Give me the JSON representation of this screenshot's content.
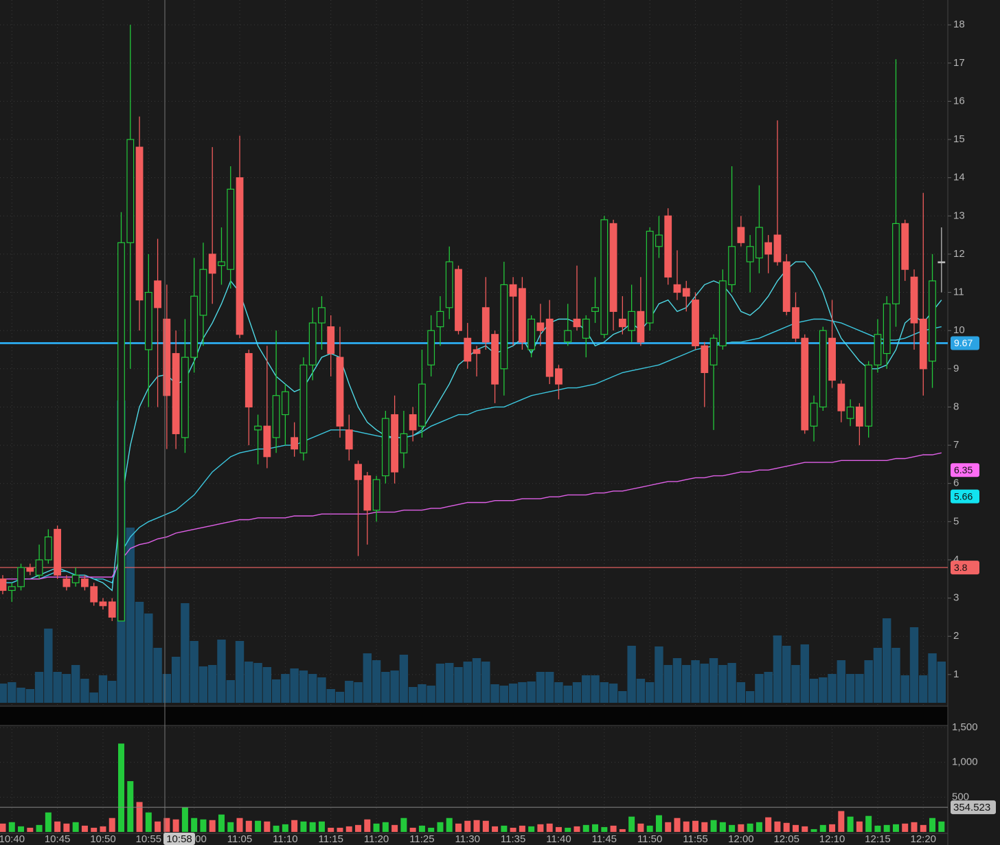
{
  "chart_data": {
    "type": "candlestick",
    "categories": [
      null,
      "10:40",
      null,
      null,
      null,
      null,
      "10:45",
      null,
      null,
      null,
      null,
      "10:50",
      null,
      null,
      null,
      null,
      "10:55",
      null,
      null,
      null,
      null,
      "11:00",
      null,
      null,
      null,
      null,
      "11:05",
      null,
      null,
      null,
      null,
      "11:10",
      null,
      null,
      null,
      null,
      "11:15",
      null,
      null,
      null,
      null,
      "11:20",
      null,
      null,
      null,
      null,
      "11:25",
      null,
      null,
      null,
      null,
      "11:30",
      null,
      null,
      null,
      null,
      "11:35",
      null,
      null,
      null,
      null,
      "11:40",
      null,
      null,
      null,
      null,
      "11:45",
      null,
      null,
      null,
      null,
      "11:50",
      null,
      null,
      null,
      null,
      "11:55",
      null,
      null,
      null,
      null,
      "12:00",
      null,
      null,
      null,
      null,
      "12:05",
      null,
      null,
      null,
      null,
      "12:10",
      null,
      null,
      null,
      null,
      "12:15",
      null,
      null,
      null,
      null,
      "12:20",
      null,
      null
    ],
    "open": [
      3.5,
      3.2,
      3.3,
      3.8,
      3.6,
      4.0,
      4.8,
      3.5,
      3.4,
      3.5,
      3.3,
      2.9,
      2.9,
      2.4,
      12.3,
      14.8,
      9.5,
      11.3,
      10.3,
      9.4,
      7.2,
      9.3,
      10.4,
      12.0,
      11.7,
      11.6,
      14.0,
      9.4,
      7.4,
      7.5,
      7.2,
      7.8,
      7.2,
      6.8,
      9.1,
      10.2,
      10.1,
      9.3,
      7.4,
      6.5,
      6.2,
      5.3,
      6.2,
      7.8,
      6.8,
      7.8,
      7.5,
      9.1,
      10.1,
      10.6,
      11.6,
      9.8,
      9.5,
      10.6,
      9.9,
      9.0,
      11.2,
      11.1,
      9.5,
      10.2,
      10.3,
      9.0,
      9.7,
      10.3,
      9.8,
      10.5,
      9.9,
      12.8,
      10.3,
      10.0,
      10.5,
      10.2,
      12.2,
      13.0,
      11.2,
      11.1,
      10.8,
      9.6,
      9.1,
      9.6,
      11.2,
      12.7,
      11.8,
      11.9,
      12.3,
      12.5,
      11.8,
      10.6,
      9.8,
      7.5,
      8.0,
      9.8,
      8.6,
      7.7,
      8.0,
      7.5,
      9.1,
      9.4,
      10.7,
      12.8,
      11.4,
      10.3,
      9.2,
      11.8
    ],
    "high": [
      3.6,
      3.4,
      3.9,
      3.9,
      4.4,
      4.8,
      4.9,
      3.6,
      3.8,
      3.6,
      3.4,
      3.0,
      3.0,
      13.1,
      18.0,
      15.6,
      12.0,
      12.4,
      11.2,
      10.0,
      10.3,
      11.9,
      12.3,
      14.8,
      12.7,
      14.3,
      15.1,
      9.5,
      7.8,
      9.6,
      10.0,
      8.6,
      7.6,
      9.3,
      10.6,
      10.9,
      10.4,
      10.1,
      7.8,
      6.6,
      6.3,
      6.2,
      7.9,
      8.3,
      7.9,
      8.0,
      9.5,
      10.4,
      10.9,
      12.2,
      11.7,
      10.2,
      9.6,
      11.4,
      10.0,
      11.8,
      11.4,
      11.4,
      10.4,
      10.7,
      10.8,
      9.1,
      10.7,
      11.7,
      10.4,
      11.4,
      13.0,
      12.9,
      10.9,
      11.2,
      11.4,
      12.7,
      13.0,
      13.2,
      12.1,
      11.3,
      11.0,
      9.7,
      9.9,
      11.6,
      14.3,
      13.0,
      12.5,
      13.8,
      12.5,
      15.5,
      12.0,
      11.0,
      9.9,
      8.3,
      10.1,
      10.8,
      8.7,
      8.2,
      8.1,
      9.2,
      10.3,
      10.9,
      17.1,
      12.9,
      11.6,
      13.6,
      12.0,
      12.7
    ],
    "low": [
      3.1,
      2.9,
      3.2,
      3.6,
      3.5,
      3.9,
      3.5,
      3.2,
      3.3,
      3.2,
      2.8,
      2.7,
      2.4,
      2.4,
      9.0,
      10.0,
      8.0,
      8.0,
      6.9,
      6.9,
      6.8,
      8.9,
      9.6,
      10.7,
      11.2,
      11.1,
      9.8,
      7.0,
      6.5,
      6.4,
      6.8,
      7.0,
      6.7,
      6.6,
      8.7,
      9.5,
      8.8,
      7.2,
      6.6,
      4.1,
      4.4,
      5.0,
      6.0,
      6.0,
      6.4,
      7.1,
      7.2,
      8.8,
      9.6,
      10.3,
      9.9,
      9.0,
      8.8,
      9.5,
      8.1,
      8.3,
      9.6,
      9.5,
      9.3,
      9.6,
      8.6,
      8.2,
      9.6,
      10.0,
      9.3,
      10.2,
      9.8,
      10.0,
      9.9,
      9.7,
      9.6,
      10.0,
      11.9,
      11.2,
      10.8,
      10.5,
      9.5,
      8.0,
      7.4,
      9.5,
      11.0,
      12.2,
      11.0,
      11.5,
      11.5,
      11.7,
      10.4,
      9.7,
      7.3,
      7.1,
      7.9,
      8.5,
      7.6,
      7.5,
      7.0,
      7.2,
      8.9,
      9.0,
      10.1,
      11.3,
      9.5,
      8.3,
      8.5,
      11.0
    ],
    "close": [
      3.2,
      3.3,
      3.8,
      3.7,
      4.0,
      4.6,
      3.6,
      3.3,
      3.6,
      3.3,
      2.9,
      2.8,
      2.5,
      12.3,
      15.0,
      10.8,
      11.0,
      10.6,
      8.3,
      7.3,
      9.3,
      10.9,
      11.6,
      11.5,
      11.8,
      13.7,
      9.9,
      8.0,
      7.5,
      6.7,
      8.3,
      8.4,
      6.9,
      9.1,
      10.2,
      10.6,
      9.4,
      7.5,
      6.9,
      6.1,
      5.3,
      6.1,
      7.7,
      6.3,
      7.3,
      7.4,
      8.6,
      10.0,
      10.5,
      11.8,
      10.0,
      9.2,
      9.4,
      9.7,
      8.6,
      11.2,
      10.9,
      9.7,
      10.3,
      10.0,
      8.8,
      8.6,
      10.0,
      10.1,
      10.3,
      10.6,
      12.9,
      10.5,
      10.1,
      10.5,
      9.7,
      12.6,
      12.5,
      11.4,
      11.0,
      10.9,
      9.6,
      8.9,
      9.8,
      11.3,
      12.2,
      12.3,
      12.2,
      12.7,
      12.0,
      11.8,
      10.5,
      9.8,
      7.4,
      8.1,
      10.0,
      8.7,
      7.9,
      8.0,
      7.5,
      9.1,
      9.9,
      10.7,
      12.8,
      11.6,
      10.2,
      9.0,
      11.3,
      11.8
    ],
    "volume": [
      28,
      30,
      22,
      20,
      45,
      108,
      45,
      42,
      55,
      35,
      15,
      40,
      32,
      440,
      255,
      147,
      130,
      80,
      42,
      67,
      145,
      90,
      53,
      55,
      92,
      33,
      90,
      60,
      58,
      52,
      34,
      42,
      50,
      47,
      42,
      37,
      20,
      16,
      32,
      30,
      72,
      62,
      45,
      47,
      70,
      23,
      27,
      25,
      57,
      58,
      52,
      60,
      65,
      60,
      27,
      25,
      28,
      30,
      31,
      45,
      45,
      30,
      25,
      30,
      40,
      40,
      30,
      28,
      17,
      83,
      35,
      30,
      82,
      55,
      65,
      55,
      62,
      57,
      65,
      55,
      58,
      30,
      17,
      42,
      45,
      98,
      83,
      55,
      85,
      35,
      37,
      42,
      62,
      42,
      42,
      62,
      80,
      123,
      80,
      40,
      110,
      40,
      72,
      60
    ],
    "lines": [
      {
        "color": "#4fd9e6",
        "values": [
          3.4,
          3.4,
          3.5,
          3.5,
          3.6,
          3.7,
          3.8,
          3.7,
          3.6,
          3.6,
          3.5,
          3.4,
          3.2,
          5.5,
          7.0,
          8.0,
          8.5,
          8.8,
          8.85,
          8.6,
          8.7,
          9.2,
          9.8,
          10.2,
          10.7,
          11.3,
          11.0,
          10.3,
          9.6,
          9.2,
          8.8,
          8.6,
          8.4,
          8.5,
          8.9,
          9.3,
          9.4,
          9.3,
          8.6,
          8.0,
          7.6,
          7.4,
          7.25,
          7.2,
          7.2,
          7.25,
          7.4,
          7.8,
          8.2,
          8.6,
          9.1,
          9.3,
          9.5,
          9.6,
          9.4,
          9.5,
          9.6,
          9.8,
          9.4,
          9.9,
          10.2,
          10.3,
          10.3,
          10.2,
          10.0,
          9.6,
          9.7,
          9.9,
          10.0,
          10.2,
          10.0,
          10.3,
          10.7,
          10.8,
          10.5,
          10.6,
          10.9,
          11.2,
          11.3,
          11.2,
          10.9,
          10.5,
          10.4,
          10.6,
          10.9,
          11.3,
          11.6,
          11.8,
          11.8,
          11.5,
          11.0,
          10.3,
          9.8,
          9.5,
          9.2,
          9.0,
          9.0,
          9.1,
          9.5,
          10.2,
          10.4,
          10.2,
          10.5,
          10.8
        ]
      },
      {
        "color": "#3cc8e0",
        "values": [
          3.4,
          3.4,
          3.5,
          3.5,
          3.5,
          3.6,
          3.7,
          3.7,
          3.6,
          3.6,
          3.5,
          3.5,
          3.4,
          4.2,
          4.6,
          4.85,
          5.0,
          5.1,
          5.2,
          5.3,
          5.5,
          5.7,
          6.0,
          6.3,
          6.5,
          6.7,
          6.8,
          6.85,
          6.9,
          6.9,
          6.95,
          7.0,
          7.0,
          7.1,
          7.2,
          7.3,
          7.4,
          7.4,
          7.4,
          7.35,
          7.3,
          7.25,
          7.2,
          7.2,
          7.2,
          7.25,
          7.35,
          7.5,
          7.6,
          7.7,
          7.8,
          7.8,
          7.9,
          7.95,
          8.0,
          8.0,
          8.1,
          8.2,
          8.3,
          8.35,
          8.4,
          8.45,
          8.5,
          8.5,
          8.55,
          8.6,
          8.7,
          8.8,
          8.9,
          8.95,
          9.0,
          9.05,
          9.1,
          9.2,
          9.3,
          9.4,
          9.5,
          9.55,
          9.6,
          9.65,
          9.7,
          9.7,
          9.75,
          9.8,
          9.9,
          10.0,
          10.1,
          10.2,
          10.25,
          10.3,
          10.3,
          10.25,
          10.2,
          10.1,
          10.0,
          9.9,
          9.8,
          9.75,
          9.75,
          9.8,
          9.9,
          10.0,
          10.05,
          10.1
        ]
      },
      {
        "color": "#e060e8",
        "values": [
          3.5,
          3.5,
          3.5,
          3.5,
          3.5,
          3.55,
          3.55,
          3.55,
          3.55,
          3.55,
          3.55,
          3.55,
          3.55,
          4.0,
          4.3,
          4.4,
          4.45,
          4.55,
          4.6,
          4.7,
          4.75,
          4.8,
          4.85,
          4.9,
          4.95,
          5.0,
          5.05,
          5.05,
          5.1,
          5.1,
          5.1,
          5.1,
          5.15,
          5.15,
          5.15,
          5.2,
          5.2,
          5.2,
          5.2,
          5.2,
          5.2,
          5.25,
          5.25,
          5.25,
          5.3,
          5.3,
          5.3,
          5.35,
          5.35,
          5.4,
          5.45,
          5.5,
          5.5,
          5.5,
          5.55,
          5.55,
          5.55,
          5.6,
          5.6,
          5.6,
          5.65,
          5.65,
          5.7,
          5.7,
          5.7,
          5.75,
          5.75,
          5.8,
          5.8,
          5.85,
          5.9,
          5.95,
          6.0,
          6.05,
          6.05,
          6.1,
          6.15,
          6.15,
          6.2,
          6.2,
          6.25,
          6.3,
          6.3,
          6.35,
          6.35,
          6.4,
          6.45,
          6.5,
          6.55,
          6.55,
          6.55,
          6.55,
          6.6,
          6.6,
          6.6,
          6.6,
          6.6,
          6.6,
          6.65,
          6.65,
          6.7,
          6.75,
          6.75,
          6.8
        ]
      }
    ],
    "levels": [
      {
        "value": 9.67,
        "color": "#2ba3e3",
        "label_color": "#ffffff",
        "line": true
      },
      {
        "value": 6.35,
        "color": "#ff6cf5",
        "label_color": "#111111",
        "line": false
      },
      {
        "value": 5.66,
        "color": "#12e3f0",
        "label_color": "#111111",
        "line": false
      },
      {
        "value": 3.8,
        "color": "#f26464",
        "label_color": "#111111",
        "line": true
      }
    ],
    "ylim": [
      0.26,
      18.65
    ],
    "yticks": [
      1,
      2,
      3,
      4,
      5,
      6,
      7,
      8,
      9,
      10,
      11,
      12,
      13,
      14,
      15,
      16,
      17,
      18
    ],
    "up_color": "#23c93b",
    "down_color": "#f25c5c",
    "volume_color": "#1a4c6b",
    "grid": true,
    "crosshair_label": "10:58",
    "lower": {
      "values": [
        120,
        140,
        80,
        60,
        100,
        280,
        150,
        120,
        140,
        90,
        60,
        80,
        200,
        1270,
        730,
        430,
        280,
        150,
        200,
        180,
        350,
        200,
        180,
        170,
        250,
        140,
        200,
        160,
        160,
        150,
        90,
        110,
        170,
        150,
        140,
        150,
        60,
        60,
        80,
        100,
        180,
        120,
        140,
        100,
        200,
        60,
        90,
        60,
        140,
        200,
        120,
        160,
        170,
        160,
        80,
        90,
        60,
        90,
        80,
        110,
        120,
        70,
        60,
        80,
        100,
        110,
        70,
        90,
        40,
        220,
        120,
        90,
        240,
        140,
        200,
        150,
        160,
        140,
        170,
        140,
        100,
        110,
        120,
        140,
        210,
        150,
        130,
        100,
        80,
        40,
        100,
        110,
        300,
        220,
        150,
        230,
        90,
        100,
        110,
        120,
        140,
        100,
        200,
        150
      ],
      "ylim": [
        -20,
        1530
      ],
      "yticks": [
        500,
        {
          "value": 1000,
          "label": "1,000"
        },
        {
          "value": 1500,
          "label": "1,500"
        }
      ],
      "level": {
        "value": 354.523,
        "color": "#bdbdbd"
      }
    }
  }
}
